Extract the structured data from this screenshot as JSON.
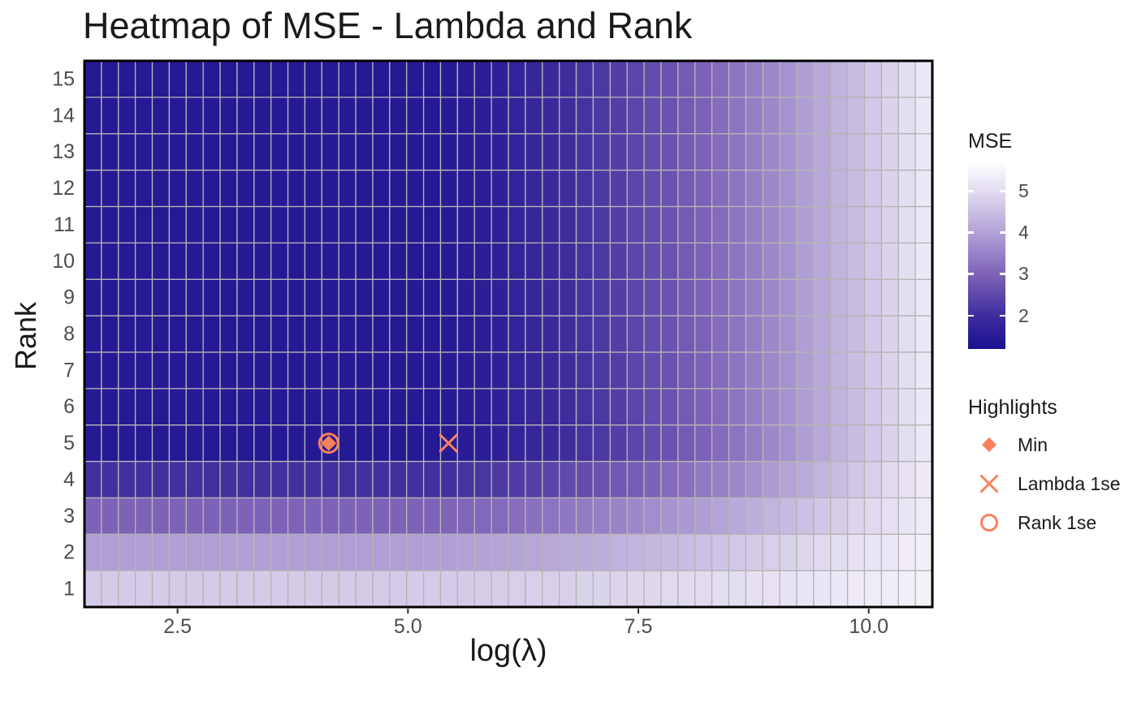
{
  "title": "Heatmap of MSE - Lambda and Rank",
  "axes": {
    "xlabel": "log(λ)",
    "ylabel": "Rank",
    "x_tick_labels": [
      "2.5",
      "5.0",
      "7.5",
      "10.0"
    ],
    "y_tick_labels": [
      "1",
      "2",
      "3",
      "4",
      "5",
      "6",
      "7",
      "8",
      "9",
      "10",
      "11",
      "12",
      "13",
      "14",
      "15"
    ]
  },
  "legend": {
    "mse_title": "MSE",
    "colorbar_ticks": [
      5,
      4,
      3,
      2
    ],
    "highlights_title": "Highlights",
    "items": [
      {
        "label": "Min",
        "marker": "diamond"
      },
      {
        "label": "Lambda 1se",
        "marker": "x"
      },
      {
        "label": "Rank 1se",
        "marker": "circle"
      }
    ]
  },
  "chart_data": {
    "type": "heatmap",
    "title": "Heatmap of MSE - Lambda and Rank",
    "xlabel": "log(λ)",
    "ylabel": "Rank",
    "x_axis": {
      "min": 1.49,
      "max": 10.69,
      "n_cols": 50,
      "ticks": [
        2.5,
        5.0,
        7.5,
        10.0
      ]
    },
    "y_axis": {
      "ranks": [
        1,
        2,
        3,
        4,
        5,
        6,
        7,
        8,
        9,
        10,
        11,
        12,
        13,
        14,
        15
      ]
    },
    "colorscale": {
      "title": "MSE",
      "domain": [
        1.2,
        5.65
      ],
      "ticks": [
        2,
        3,
        4,
        5
      ],
      "stops": [
        [
          1.2,
          "#1A1090"
        ],
        [
          2.0,
          "#3F2D9D"
        ],
        [
          3.0,
          "#7D63B8"
        ],
        [
          4.0,
          "#B2A2D6"
        ],
        [
          5.0,
          "#E2DCF0"
        ],
        [
          5.65,
          "#FDFCFE"
        ]
      ]
    },
    "grid_color": "#B5B5B5",
    "panel_border_color": "#000000",
    "tick_color": "#333333",
    "highlight_color": "#F9815A",
    "rows": [
      {
        "ranks": [
          1
        ],
        "mse": [
          4.7,
          4.7,
          4.7,
          4.7,
          4.7,
          4.7,
          4.7,
          4.7,
          4.7,
          4.7,
          4.7,
          4.7,
          4.7,
          4.7,
          4.7,
          4.7,
          4.7,
          4.7,
          4.7,
          4.7,
          4.7,
          4.71,
          4.71,
          4.72,
          4.74,
          4.75,
          4.77,
          4.78,
          4.8,
          4.82,
          4.84,
          4.87,
          4.89,
          4.91,
          4.94,
          4.97,
          4.99,
          5.02,
          5.05,
          5.08,
          5.11,
          5.14,
          5.18,
          5.21,
          5.25,
          5.28,
          5.32,
          5.35,
          5.39,
          5.43
        ]
      },
      {
        "ranks": [
          2
        ],
        "mse": [
          3.95,
          3.95,
          3.95,
          3.95,
          3.95,
          3.95,
          3.95,
          3.95,
          3.95,
          3.95,
          3.95,
          3.95,
          3.95,
          3.95,
          3.95,
          3.95,
          3.95,
          3.95,
          3.95,
          3.95,
          3.95,
          3.96,
          3.98,
          4.0,
          4.02,
          4.05,
          4.08,
          4.12,
          4.15,
          4.19,
          4.23,
          4.28,
          4.32,
          4.37,
          4.42,
          4.47,
          4.53,
          4.58,
          4.64,
          4.7,
          4.76,
          4.82,
          4.89,
          4.95,
          5.02,
          5.09,
          5.16,
          5.23,
          5.31,
          5.38
        ]
      },
      {
        "ranks": [
          3
        ],
        "mse": [
          3.0,
          3.0,
          3.0,
          3.0,
          3.0,
          3.0,
          3.0,
          3.0,
          3.0,
          3.0,
          3.0,
          3.0,
          3.0,
          3.0,
          3.0,
          3.0,
          3.0,
          3.0,
          3.0,
          3.0,
          3.0,
          3.02,
          3.05,
          3.08,
          3.12,
          3.17,
          3.22,
          3.27,
          3.33,
          3.4,
          3.46,
          3.53,
          3.61,
          3.69,
          3.77,
          3.85,
          3.94,
          4.03,
          4.13,
          4.22,
          4.32,
          4.42,
          4.53,
          4.63,
          4.74,
          4.86,
          4.97,
          5.09,
          5.21,
          5.33
        ]
      },
      {
        "ranks": [
          4
        ],
        "mse": [
          2.05,
          2.05,
          2.05,
          2.05,
          2.05,
          2.05,
          2.05,
          2.05,
          2.05,
          2.05,
          2.05,
          2.05,
          2.05,
          2.05,
          2.05,
          2.05,
          2.05,
          2.05,
          2.05,
          2.05,
          2.05,
          2.08,
          2.11,
          2.16,
          2.22,
          2.28,
          2.35,
          2.43,
          2.51,
          2.6,
          2.69,
          2.79,
          2.89,
          3.0,
          3.11,
          3.23,
          3.35,
          3.48,
          3.61,
          3.74,
          3.88,
          4.02,
          4.17,
          4.32,
          4.47,
          4.62,
          4.78,
          4.95,
          5.11,
          5.28
        ]
      },
      {
        "ranks": [
          5,
          6,
          7,
          8,
          9,
          10,
          11,
          12,
          13,
          14,
          15
        ],
        "mse": [
          1.45,
          1.45,
          1.45,
          1.45,
          1.45,
          1.45,
          1.45,
          1.45,
          1.45,
          1.45,
          1.45,
          1.45,
          1.45,
          1.45,
          1.45,
          1.45,
          1.45,
          1.45,
          1.45,
          1.45,
          1.45,
          1.48,
          1.52,
          1.58,
          1.65,
          1.72,
          1.8,
          1.89,
          1.99,
          2.09,
          2.2,
          2.32,
          2.44,
          2.57,
          2.7,
          2.84,
          2.98,
          3.13,
          3.28,
          3.44,
          3.6,
          3.76,
          3.93,
          4.11,
          4.29,
          4.47,
          4.66,
          4.85,
          5.04,
          5.24
        ]
      }
    ],
    "highlights": [
      {
        "name": "Min",
        "marker": "diamond",
        "loglambda": 4.14,
        "rank": 5
      },
      {
        "name": "Lambda 1se",
        "marker": "x",
        "loglambda": 5.44,
        "rank": 5
      },
      {
        "name": "Rank 1se",
        "marker": "circle",
        "loglambda": 4.14,
        "rank": 5
      }
    ]
  }
}
